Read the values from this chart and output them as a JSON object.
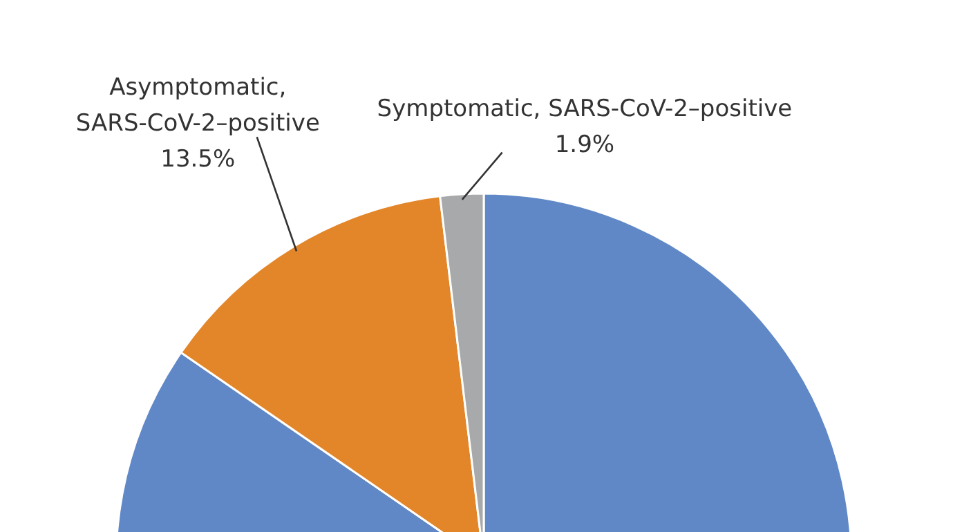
{
  "chart_data": {
    "type": "pie",
    "categories": [
      null,
      "Asymptomatic,\nSARS-CoV-2–positive",
      "Symptomatic, SARS-CoV-2–positive"
    ],
    "values": [
      84.6,
      13.5,
      1.9
    ],
    "colors": [
      "#6088c6",
      "#e3862a",
      "#a8a9ab"
    ],
    "value_labels": [
      null,
      "13.5%",
      "1.9%"
    ]
  }
}
